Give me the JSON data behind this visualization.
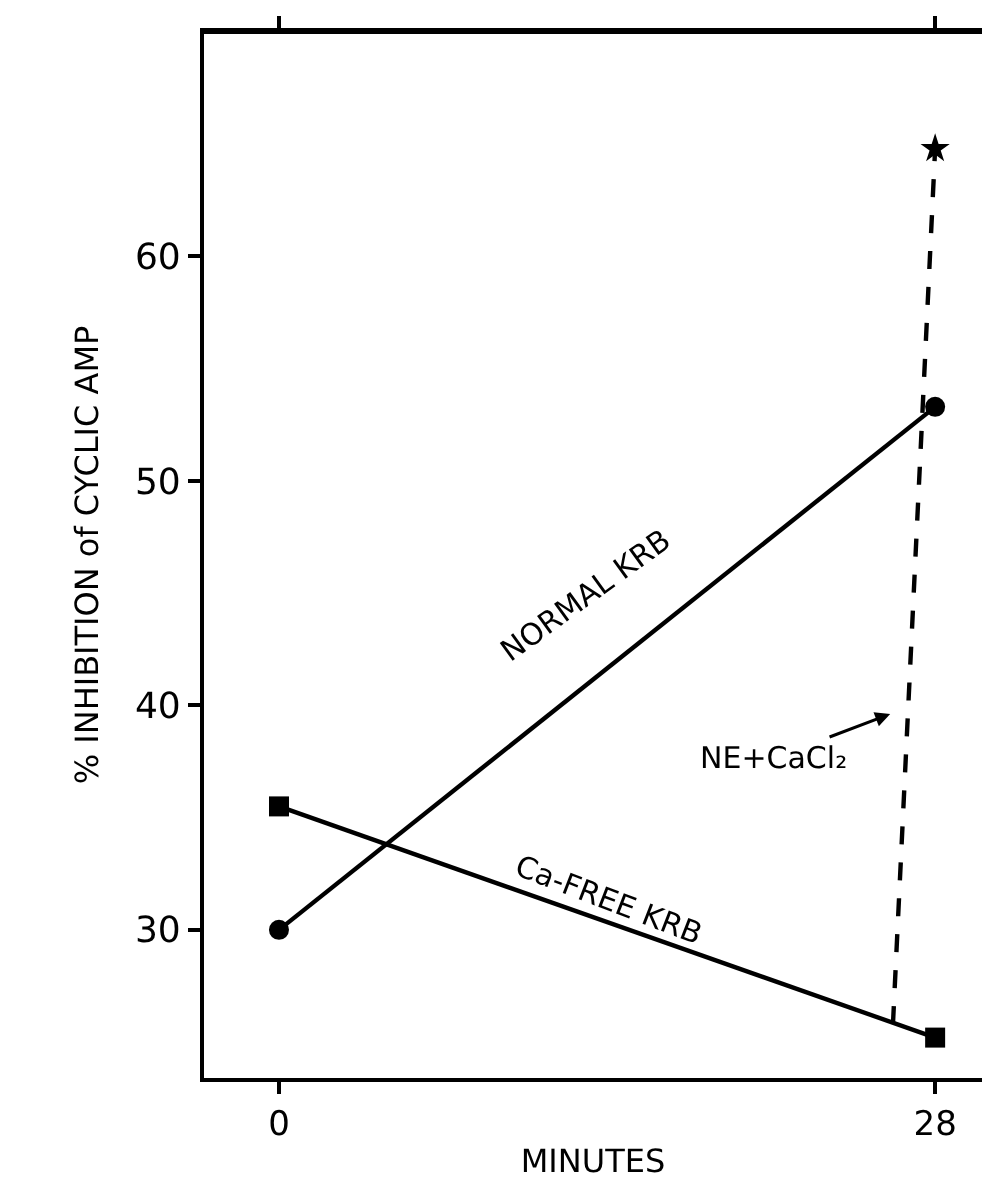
{
  "chart_data": {
    "type": "line",
    "xlabel": "MINUTES",
    "ylabel": "% INHIBITION of CYCLIC AMP",
    "xlim": [
      -3.2,
      30
    ],
    "xticks": [
      0,
      28
    ],
    "ylim": [
      23.4,
      70
    ],
    "yticks": [
      30,
      40,
      50,
      60
    ],
    "series": [
      {
        "x": [
          0,
          28
        ],
        "values": [
          30,
          53.3
        ],
        "color": "#000000",
        "marker": "circle",
        "line_style": "solid"
      },
      {
        "x": [
          0,
          28
        ],
        "values": [
          35.5,
          25.2
        ],
        "color": "#000000",
        "marker": "square",
        "line_style": "solid"
      },
      {
        "x": [
          26.2,
          28
        ],
        "values": [
          25.8,
          64.8
        ],
        "color": "#000000",
        "marker": "none",
        "line_style": "dashed"
      },
      {
        "type": "scatter",
        "x": [
          28
        ],
        "values": [
          64.8
        ],
        "color": "#000000",
        "marker": "star"
      }
    ],
    "annotations": [
      "NORMAL KRB",
      "Ca-FREE KRB",
      "NE+CaCl₂"
    ]
  }
}
